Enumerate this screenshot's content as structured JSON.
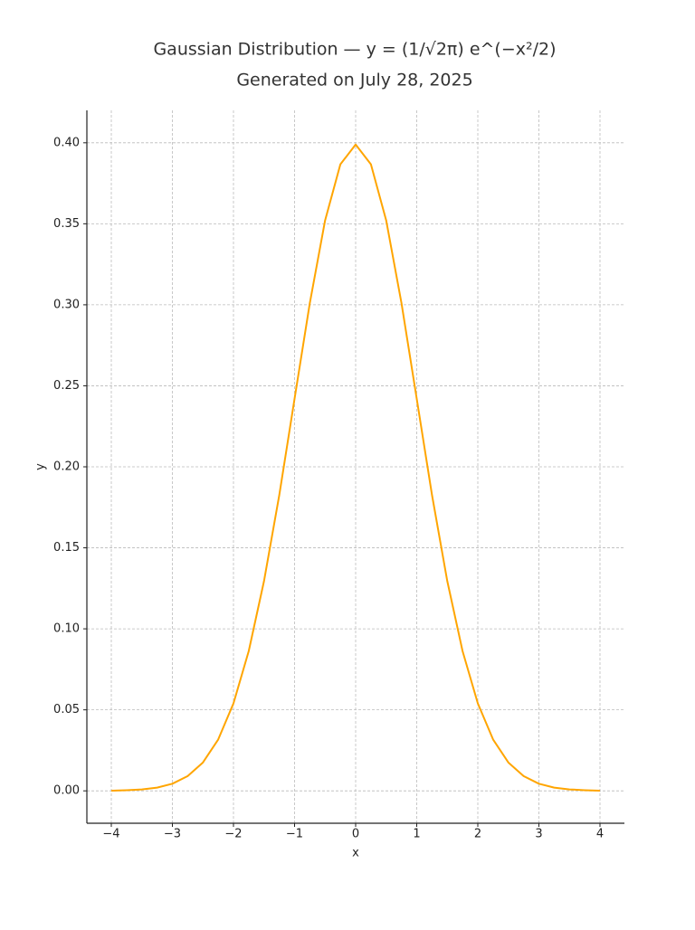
{
  "chart_data": {
    "type": "line",
    "title": "Gaussian Distribution — y = (1/√2π) e^(−x²/2)",
    "subtitle": "Generated on July 28, 2025",
    "x_label": "x",
    "y_label": "y",
    "x": [
      -4,
      -3.75,
      -3.5,
      -3.25,
      -3,
      -2.75,
      -2.5,
      -2.25,
      -2,
      -1.75,
      -1.5,
      -1.25,
      -1,
      -0.75,
      -0.5,
      -0.25,
      0,
      0.25,
      0.5,
      0.75,
      1,
      1.25,
      1.5,
      1.75,
      2,
      2.25,
      2.5,
      2.75,
      3,
      3.25,
      3.5,
      3.75,
      4
    ],
    "series": [
      {
        "name": "y",
        "color": "#ffa500",
        "values": [
          0.0001,
          0.0004,
          0.0009,
          0.002,
          0.0044,
          0.0091,
          0.0175,
          0.0317,
          0.054,
          0.0863,
          0.1295,
          0.1826,
          0.242,
          0.3011,
          0.3521,
          0.3867,
          0.3989,
          0.3867,
          0.3521,
          0.3011,
          0.242,
          0.1826,
          0.1295,
          0.0863,
          0.054,
          0.0317,
          0.0175,
          0.0091,
          0.0044,
          0.002,
          0.0009,
          0.0004,
          0.0001
        ]
      }
    ],
    "xlim": [
      -4.4,
      4.4
    ],
    "ylim": [
      -0.02,
      0.42
    ],
    "xticks": [
      {
        "value": -4,
        "label": "−4"
      },
      {
        "value": -3,
        "label": "−3"
      },
      {
        "value": -2,
        "label": "−2"
      },
      {
        "value": -1,
        "label": "−1"
      },
      0,
      1,
      2,
      3,
      4
    ],
    "yticks": [
      {
        "value": 0,
        "label": "0.00"
      },
      {
        "value": 0.05,
        "label": "0.05"
      },
      {
        "value": 0.1,
        "label": "0.10"
      },
      {
        "value": 0.15,
        "label": "0.15"
      },
      {
        "value": 0.2,
        "label": "0.20"
      },
      {
        "value": 0.25,
        "label": "0.25"
      },
      {
        "value": 0.3,
        "label": "0.30"
      },
      {
        "value": 0.35,
        "label": "0.35"
      },
      {
        "value": 0.4,
        "label": "0.40"
      }
    ],
    "grid": true
  }
}
